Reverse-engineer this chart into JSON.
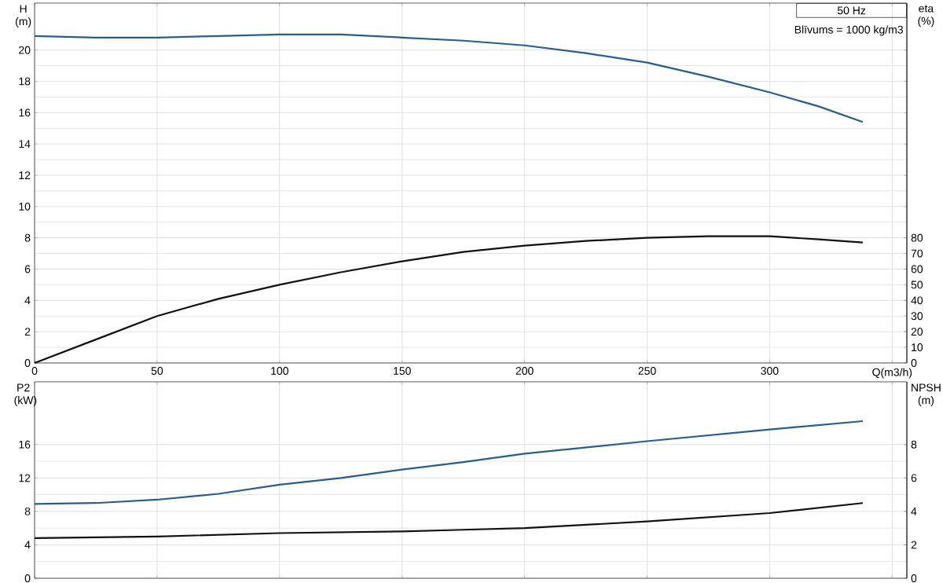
{
  "chart_data": [
    {
      "type": "line",
      "xlabel": "Q(m3/h)",
      "ylabel": "H (m)",
      "y2label": "eta (%)",
      "annotations": [
        "50 Hz",
        "Blīvums = 1000 kg/m3"
      ],
      "grid": true,
      "xlim": [
        0,
        356
      ],
      "xticks": [
        0,
        50,
        100,
        150,
        200,
        250,
        300,
        {
          "value": 350,
          "label": null
        }
      ],
      "ylim": [
        0,
        23
      ],
      "yticks": [
        0,
        2,
        4,
        6,
        8,
        10,
        12,
        14,
        16,
        18,
        20
      ],
      "y2lim": [
        0,
        230
      ],
      "y2ticks": [
        0,
        10,
        20,
        30,
        40,
        50,
        60,
        70,
        80
      ],
      "series": [
        {
          "color": "#2b5d8c",
          "x": [
            0,
            25,
            50,
            75,
            100,
            125,
            150,
            175,
            200,
            225,
            250,
            275,
            300,
            320,
            338
          ],
          "values": [
            20.9,
            20.8,
            20.8,
            20.9,
            21.0,
            21.0,
            20.8,
            20.6,
            20.3,
            19.8,
            19.2,
            18.3,
            17.3,
            16.4,
            15.4
          ]
        },
        {
          "color": "#111111",
          "axis": "y2",
          "x": [
            0,
            25,
            50,
            75,
            100,
            125,
            150,
            175,
            200,
            225,
            250,
            275,
            300,
            320,
            338
          ],
          "values": [
            0,
            15,
            30,
            41,
            50,
            58,
            65,
            71,
            75,
            78,
            80,
            81,
            81,
            79,
            77
          ]
        }
      ]
    },
    {
      "type": "line",
      "ylabel": "P2 (kW)",
      "y2label": "NPSH (m)",
      "grid": true,
      "tick_labels": "y",
      "xlim": [
        0,
        356
      ],
      "xticks": [
        0,
        50,
        100,
        150,
        200,
        250,
        300,
        350
      ],
      "ylim": [
        0,
        23.5
      ],
      "yticks": [
        0,
        4,
        8,
        12,
        16
      ],
      "y2lim": [
        0,
        11.75
      ],
      "y2ticks": [
        0,
        2,
        4,
        6,
        8
      ],
      "series": [
        {
          "color": "#2b5d8c",
          "x": [
            0,
            25,
            50,
            75,
            100,
            125,
            150,
            175,
            200,
            250,
            300,
            338
          ],
          "values": [
            8.9,
            9.0,
            9.4,
            10.1,
            11.2,
            12.0,
            13.0,
            13.9,
            14.9,
            16.4,
            17.8,
            18.8
          ]
        },
        {
          "color": "#111111",
          "axis": "y2",
          "x": [
            0,
            50,
            100,
            150,
            175,
            200,
            250,
            300,
            338
          ],
          "values": [
            2.4,
            2.5,
            2.7,
            2.8,
            2.9,
            3.0,
            3.4,
            3.9,
            4.5
          ]
        }
      ]
    }
  ]
}
